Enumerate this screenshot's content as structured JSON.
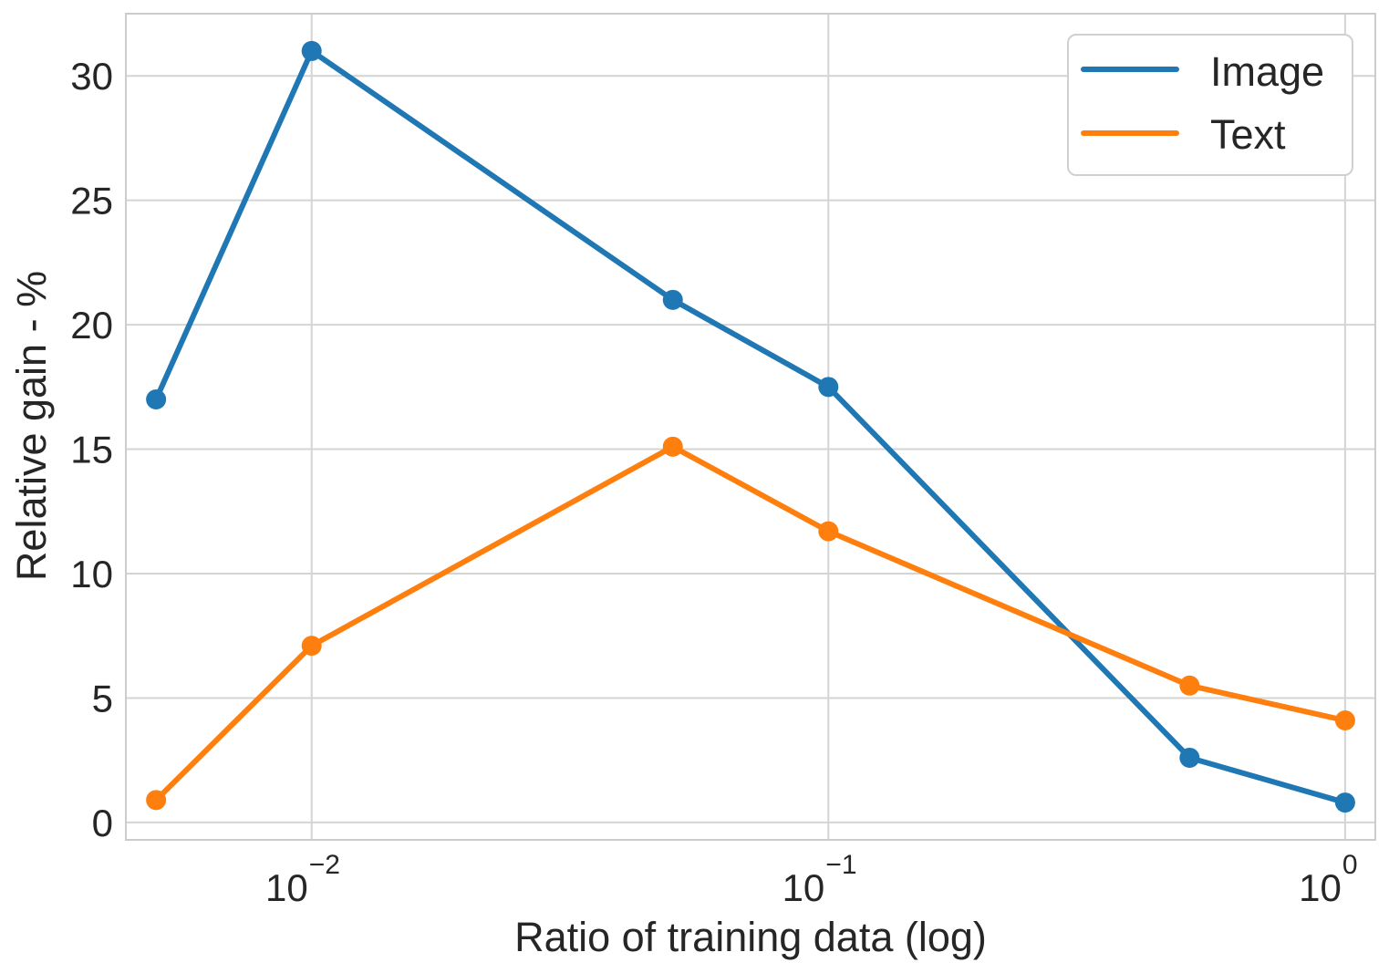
{
  "chart_data": {
    "type": "line",
    "title": "",
    "xlabel": "Ratio of training data (log)",
    "ylabel": "Relative gain - %",
    "xscale": "log",
    "x": [
      0.005,
      0.01,
      0.05,
      0.1,
      0.5,
      1.0
    ],
    "xlim": [
      0.00437,
      1.144
    ],
    "ylim": [
      -0.7,
      32.5
    ],
    "yticks": [
      0,
      5,
      10,
      15,
      20,
      25,
      30
    ],
    "ytick_labels": [
      "0",
      "5",
      "10",
      "15",
      "20",
      "25",
      "30"
    ],
    "xticks": [
      {
        "value": 0.01,
        "base": "10",
        "exp": "−2"
      },
      {
        "value": 0.1,
        "base": "10",
        "exp": "−1"
      },
      {
        "value": 1.0,
        "base": "10",
        "exp": "0"
      }
    ],
    "grid": true,
    "legend_position": "top-right",
    "series": [
      {
        "name": "Image",
        "color": "#1f77b4",
        "values": [
          17.0,
          31.0,
          21.0,
          17.5,
          2.6,
          0.8
        ]
      },
      {
        "name": "Text",
        "color": "#ff7f0e",
        "values": [
          0.9,
          7.1,
          15.1,
          11.7,
          5.5,
          4.1
        ]
      }
    ],
    "colors": {
      "grid": "#d4d4d4",
      "spine": "#cccccc",
      "text": "#262626"
    }
  }
}
